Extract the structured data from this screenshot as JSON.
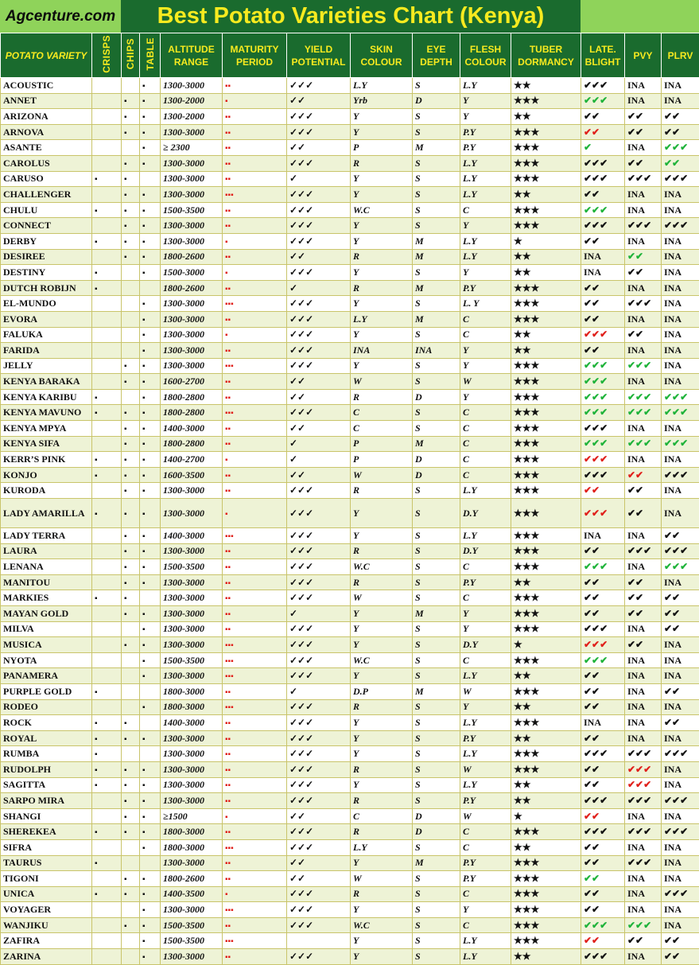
{
  "brand": "Agcenture.com",
  "title": "Best Potato Varieties Chart (Kenya)",
  "headers": [
    "POTATO VARIETY",
    "CRISPS",
    "CHIPS",
    "TABLE",
    "ALTITUDE RANGE",
    "MATURITY PERIOD",
    "YIELD POTENTIAL",
    "SKIN COLOUR",
    "EYE DEPTH",
    "FLESH COLOUR",
    "TUBER DORMANCY",
    "LATE. BLIGHT",
    "PVY",
    "PLRV"
  ],
  "colors": {
    "header_bg": "#1a6b2e",
    "header_text": "#f7ea1f",
    "accent_green": "#8fd35a",
    "check_green": "#1fb33a",
    "check_red": "#e0201b"
  },
  "rows": [
    {
      "name": "ACOUSTIC",
      "cr": 0,
      "ch": 0,
      "tb": 1,
      "alt": "1300-3000",
      "mat": 2,
      "yld": 3,
      "skin": "L.Y",
      "eye": "S",
      "flesh": "L.Y",
      "dorm": 2,
      "lb": "3k",
      "pvy": "INA",
      "plrv": "INA"
    },
    {
      "name": "ANNET",
      "cr": 0,
      "ch": 1,
      "tb": 1,
      "alt": "1300-2000",
      "mat": 1,
      "yld": 2,
      "skin": "Yrb",
      "eye": "D",
      "flesh": "Y",
      "dorm": 3,
      "lb": "3g",
      "pvy": "INA",
      "plrv": "INA"
    },
    {
      "name": "ARIZONA",
      "cr": 0,
      "ch": 1,
      "tb": 1,
      "alt": "1300-2000",
      "mat": 2,
      "yld": 3,
      "skin": "Y",
      "eye": "S",
      "flesh": "Y",
      "dorm": 2,
      "lb": "2k",
      "pvy": "2k",
      "plrv": "2k"
    },
    {
      "name": "ARNOVA",
      "cr": 0,
      "ch": 1,
      "tb": 1,
      "alt": "1300-3000",
      "mat": 2,
      "yld": 3,
      "skin": "Y",
      "eye": "S",
      "flesh": "P.Y",
      "dorm": 3,
      "lb": "2r",
      "pvy": "2k",
      "plrv": "2k"
    },
    {
      "name": "ASANTE",
      "cr": 0,
      "ch": 0,
      "tb": 1,
      "alt": "≥ 2300",
      "mat": 2,
      "yld": 2,
      "skin": "P",
      "eye": "M",
      "flesh": "P.Y",
      "dorm": 3,
      "lb": "1g",
      "pvy": "INA",
      "plrv": "3g"
    },
    {
      "name": "CAROLUS",
      "cr": 0,
      "ch": 1,
      "tb": 1,
      "alt": "1300-3000",
      "mat": 2,
      "yld": 3,
      "skin": "R",
      "eye": "S",
      "flesh": "L.Y",
      "dorm": 3,
      "lb": "3k",
      "pvy": "2k",
      "plrv": "2g"
    },
    {
      "name": "CARUSO",
      "cr": 1,
      "ch": 1,
      "tb": 0,
      "alt": "1300-3000",
      "mat": 2,
      "yld": 1,
      "skin": "Y",
      "eye": "S",
      "flesh": "L.Y",
      "dorm": 3,
      "lb": "3k",
      "pvy": "3k",
      "plrv": "3k"
    },
    {
      "name": "CHALLENGER",
      "cr": 0,
      "ch": 1,
      "tb": 1,
      "alt": "1300-3000",
      "mat": 3,
      "yld": 3,
      "skin": "Y",
      "eye": "S",
      "flesh": "L.Y",
      "dorm": 2,
      "lb": "2k",
      "pvy": "INA",
      "plrv": "INA"
    },
    {
      "name": "CHULU",
      "cr": 1,
      "ch": 1,
      "tb": 1,
      "alt": "1500-3500",
      "mat": 2,
      "yld": 3,
      "skin": "W.C",
      "eye": "S",
      "flesh": "C",
      "dorm": 3,
      "lb": "3g",
      "pvy": "INA",
      "plrv": "INA"
    },
    {
      "name": "CONNECT",
      "cr": 0,
      "ch": 1,
      "tb": 1,
      "alt": "1300-3000",
      "mat": 2,
      "yld": 3,
      "skin": "Y",
      "eye": "S",
      "flesh": "Y",
      "dorm": 3,
      "lb": "3k",
      "pvy": "3k",
      "plrv": "3k"
    },
    {
      "name": "DERBY",
      "cr": 1,
      "ch": 1,
      "tb": 1,
      "alt": "1300-3000",
      "mat": 1,
      "yld": 3,
      "skin": "Y",
      "eye": "M",
      "flesh": "L.Y",
      "dorm": 1,
      "lb": "2k",
      "pvy": "INA",
      "plrv": "INA"
    },
    {
      "name": "DESIREE",
      "cr": 0,
      "ch": 1,
      "tb": 1,
      "alt": "1800-2600",
      "mat": 2,
      "yld": 2,
      "skin": "R",
      "eye": "M",
      "flesh": "L.Y",
      "dorm": 2,
      "lb": "INA",
      "pvy": "2g",
      "plrv": "INA"
    },
    {
      "name": "DESTINY",
      "cr": 1,
      "ch": 0,
      "tb": 1,
      "alt": "1500-3000",
      "mat": 1,
      "yld": 3,
      "skin": "Y",
      "eye": "S",
      "flesh": "Y",
      "dorm": 2,
      "lb": "INA",
      "pvy": "2k",
      "plrv": "INA"
    },
    {
      "name": "DUTCH ROBIJN",
      "cr": 1,
      "ch": 0,
      "tb": 0,
      "alt": "1800-2600",
      "mat": 2,
      "yld": 1,
      "skin": "R",
      "eye": "M",
      "flesh": "P.Y",
      "dorm": 3,
      "lb": "2k",
      "pvy": "INA",
      "plrv": "INA"
    },
    {
      "name": "EL-MUNDO",
      "cr": 0,
      "ch": 0,
      "tb": 1,
      "alt": "1300-3000",
      "mat": 3,
      "yld": 3,
      "skin": "Y",
      "eye": "S",
      "flesh": "L. Y",
      "dorm": 3,
      "lb": "2k",
      "pvy": "3k",
      "plrv": "INA"
    },
    {
      "name": "EVORA",
      "cr": 0,
      "ch": 0,
      "tb": 1,
      "alt": "1300-3000",
      "mat": 2,
      "yld": 3,
      "skin": "L.Y",
      "eye": "M",
      "flesh": "C",
      "dorm": 3,
      "lb": "2k",
      "pvy": "INA",
      "plrv": "INA"
    },
    {
      "name": "FALUKA",
      "cr": 0,
      "ch": 0,
      "tb": 1,
      "alt": "1300-3000",
      "mat": 1,
      "yld": 3,
      "skin": "Y",
      "eye": "S",
      "flesh": "C",
      "dorm": 2,
      "lb": "3r",
      "pvy": "2k",
      "plrv": "INA"
    },
    {
      "name": "FARIDA",
      "cr": 0,
      "ch": 0,
      "tb": 1,
      "alt": "1300-3000",
      "mat": 2,
      "yld": 3,
      "skin": "INA",
      "eye": "INA",
      "flesh": "Y",
      "dorm": 2,
      "lb": "2k",
      "pvy": "INA",
      "plrv": "INA"
    },
    {
      "name": "JELLY",
      "cr": 0,
      "ch": 1,
      "tb": 1,
      "alt": "1300-3000",
      "mat": 3,
      "yld": 3,
      "skin": "Y",
      "eye": "S",
      "flesh": "Y",
      "dorm": 3,
      "lb": "3g",
      "pvy": "3g",
      "plrv": "INA"
    },
    {
      "name": "KENYA BARAKA",
      "cr": 0,
      "ch": 1,
      "tb": 1,
      "alt": "1600-2700",
      "mat": 2,
      "yld": 2,
      "skin": "W",
      "eye": "S",
      "flesh": "W",
      "dorm": 3,
      "lb": "3g",
      "pvy": "INA",
      "plrv": "INA"
    },
    {
      "name": "KENYA KARIBU",
      "cr": 1,
      "ch": 0,
      "tb": 1,
      "alt": "1800-2800",
      "mat": 2,
      "yld": 2,
      "skin": "R",
      "eye": "D",
      "flesh": "Y",
      "dorm": 3,
      "lb": "3g",
      "pvy": "3g",
      "plrv": "3g"
    },
    {
      "name": "KENYA MAVUNO",
      "cr": 1,
      "ch": 1,
      "tb": 1,
      "alt": "1800-2800",
      "mat": 3,
      "yld": 3,
      "skin": "C",
      "eye": "S",
      "flesh": "C",
      "dorm": 3,
      "lb": "3g",
      "pvy": "3g",
      "plrv": "3g"
    },
    {
      "name": "KENYA MPYA",
      "cr": 0,
      "ch": 1,
      "tb": 1,
      "alt": "1400-3000",
      "mat": 2,
      "yld": 2,
      "skin": "C",
      "eye": "S",
      "flesh": "C",
      "dorm": 3,
      "lb": "3k",
      "pvy": "INA",
      "plrv": "INA"
    },
    {
      "name": "KENYA SIFA",
      "cr": 0,
      "ch": 1,
      "tb": 1,
      "alt": "1800-2800",
      "mat": 2,
      "yld": 1,
      "skin": "P",
      "eye": "M",
      "flesh": "C",
      "dorm": 3,
      "lb": "3g",
      "pvy": "3g",
      "plrv": "3g"
    },
    {
      "name": "KERR’S PINK",
      "cr": 1,
      "ch": 1,
      "tb": 1,
      "alt": "1400-2700",
      "mat": 1,
      "yld": 1,
      "skin": "P",
      "eye": "D",
      "flesh": "C",
      "dorm": 3,
      "lb": "3r",
      "pvy": "INA",
      "plrv": "INA"
    },
    {
      "name": "KONJO",
      "cr": 1,
      "ch": 1,
      "tb": 1,
      "alt": "1600-3500",
      "mat": 2,
      "yld": 2,
      "skin": "W",
      "eye": "D",
      "flesh": "C",
      "dorm": 3,
      "lb": "3k",
      "pvy": "2r",
      "plrv": "3k"
    },
    {
      "name": "KURODA",
      "cr": 0,
      "ch": 1,
      "tb": 1,
      "alt": "1300-3000",
      "mat": 2,
      "yld": 3,
      "skin": "R",
      "eye": "S",
      "flesh": "L.Y",
      "dorm": 3,
      "lb": "2r",
      "pvy": "2k",
      "plrv": "INA"
    },
    {
      "name": "LADY AMARILLA",
      "cr": 1,
      "ch": 1,
      "tb": 1,
      "alt": "1300-3000",
      "mat": 1,
      "yld": 3,
      "skin": "Y",
      "eye": "S",
      "flesh": "D.Y",
      "dorm": 3,
      "lb": "3r",
      "pvy": "2k",
      "plrv": "INA",
      "tall": 1
    },
    {
      "name": "LADY TERRA",
      "cr": 0,
      "ch": 1,
      "tb": 1,
      "alt": "1400-3000",
      "mat": 3,
      "yld": 3,
      "skin": "Y",
      "eye": "S",
      "flesh": "L.Y",
      "dorm": 3,
      "lb": "INA",
      "pvy": "INA",
      "plrv": "2k"
    },
    {
      "name": "LAURA",
      "cr": 0,
      "ch": 1,
      "tb": 1,
      "alt": "1300-3000",
      "mat": 2,
      "yld": 3,
      "skin": "R",
      "eye": "S",
      "flesh": "D.Y",
      "dorm": 3,
      "lb": "2k",
      "pvy": "3k",
      "plrv": "3k"
    },
    {
      "name": "LENANA",
      "cr": 0,
      "ch": 1,
      "tb": 1,
      "alt": "1500-3500",
      "mat": 2,
      "yld": 3,
      "skin": "W.C",
      "eye": "S",
      "flesh": "C",
      "dorm": 3,
      "lb": "3g",
      "pvy": "INA",
      "plrv": "3g"
    },
    {
      "name": "MANITOU",
      "cr": 0,
      "ch": 1,
      "tb": 1,
      "alt": "1300-3000",
      "mat": 2,
      "yld": 3,
      "skin": "R",
      "eye": "S",
      "flesh": "P.Y",
      "dorm": 2,
      "lb": "2k",
      "pvy": "2k",
      "plrv": "INA"
    },
    {
      "name": "MARKIES",
      "cr": 1,
      "ch": 1,
      "tb": 0,
      "alt": "1300-3000",
      "mat": 2,
      "yld": 3,
      "skin": "W",
      "eye": "S",
      "flesh": "C",
      "dorm": 3,
      "lb": "2k",
      "pvy": "2k",
      "plrv": "2k"
    },
    {
      "name": "MAYAN GOLD",
      "cr": 0,
      "ch": 1,
      "tb": 1,
      "alt": "1300-3000",
      "mat": 2,
      "yld": 1,
      "skin": "Y",
      "eye": "M",
      "flesh": "Y",
      "dorm": 3,
      "lb": "2k",
      "pvy": "2k",
      "plrv": "2k"
    },
    {
      "name": "MILVA",
      "cr": 0,
      "ch": 0,
      "tb": 1,
      "alt": "1300-3000",
      "mat": 2,
      "yld": 3,
      "skin": "Y",
      "eye": "S",
      "flesh": "Y",
      "dorm": 3,
      "lb": "3k",
      "pvy": "INA",
      "plrv": "2k"
    },
    {
      "name": "MUSICA",
      "cr": 0,
      "ch": 1,
      "tb": 1,
      "alt": "1300-3000",
      "mat": 3,
      "yld": 3,
      "skin": "Y",
      "eye": "S",
      "flesh": "D.Y",
      "dorm": 1,
      "lb": "3r",
      "pvy": "2k",
      "plrv": "INA"
    },
    {
      "name": "NYOTA",
      "cr": 0,
      "ch": 0,
      "tb": 1,
      "alt": "1500-3500",
      "mat": 3,
      "yld": 3,
      "skin": "W.C",
      "eye": "S",
      "flesh": "C",
      "dorm": 3,
      "lb": "3g",
      "pvy": "INA",
      "plrv": "INA"
    },
    {
      "name": "PANAMERA",
      "cr": 0,
      "ch": 0,
      "tb": 1,
      "alt": "1300-3000",
      "mat": 3,
      "yld": 3,
      "skin": "Y",
      "eye": "S",
      "flesh": "L.Y",
      "dorm": 2,
      "lb": "2k",
      "pvy": "INA",
      "plrv": "INA"
    },
    {
      "name": "PURPLE GOLD",
      "cr": 1,
      "ch": 0,
      "tb": 0,
      "alt": "1800-3000",
      "mat": 2,
      "yld": 1,
      "skin": "D.P",
      "eye": "M",
      "flesh": "W",
      "dorm": 3,
      "lb": "2k",
      "pvy": "INA",
      "plrv": "2k"
    },
    {
      "name": "RODEO",
      "cr": 0,
      "ch": 0,
      "tb": 1,
      "alt": "1800-3000",
      "mat": 3,
      "yld": 3,
      "skin": "R",
      "eye": "S",
      "flesh": "Y",
      "dorm": 2,
      "lb": "2k",
      "pvy": "INA",
      "plrv": "INA"
    },
    {
      "name": "ROCK",
      "cr": 1,
      "ch": 1,
      "tb": 0,
      "alt": "1400-3000",
      "mat": 2,
      "yld": 3,
      "skin": "Y",
      "eye": "S",
      "flesh": "L.Y",
      "dorm": 3,
      "lb": "INA",
      "pvy": "INA",
      "plrv": "2k"
    },
    {
      "name": "ROYAL",
      "cr": 1,
      "ch": 1,
      "tb": 1,
      "alt": "1300-3000",
      "mat": 2,
      "yld": 3,
      "skin": "Y",
      "eye": "S",
      "flesh": "P.Y",
      "dorm": 2,
      "lb": "2k",
      "pvy": "INA",
      "plrv": "INA"
    },
    {
      "name": "RUMBA",
      "cr": 1,
      "ch": 0,
      "tb": 0,
      "alt": "1300-3000",
      "mat": 2,
      "yld": 3,
      "skin": "Y",
      "eye": "S",
      "flesh": "L.Y",
      "dorm": 3,
      "lb": "3k",
      "pvy": "3k",
      "plrv": "3k"
    },
    {
      "name": "RUDOLPH",
      "cr": 1,
      "ch": 1,
      "tb": 1,
      "alt": "1300-3000",
      "mat": 2,
      "yld": 3,
      "skin": "R",
      "eye": "S",
      "flesh": "W",
      "dorm": 3,
      "lb": "2k",
      "pvy": "3r",
      "plrv": "INA"
    },
    {
      "name": "SAGITTA",
      "cr": 1,
      "ch": 1,
      "tb": 1,
      "alt": "1300-3000",
      "mat": 2,
      "yld": 3,
      "skin": "Y",
      "eye": "S",
      "flesh": "L.Y",
      "dorm": 2,
      "lb": "2k",
      "pvy": "3r",
      "plrv": "INA"
    },
    {
      "name": "SARPO MIRA",
      "cr": 0,
      "ch": 1,
      "tb": 1,
      "alt": "1300-3000",
      "mat": 2,
      "yld": 3,
      "skin": "R",
      "eye": "S",
      "flesh": "P.Y",
      "dorm": 2,
      "lb": "3k",
      "pvy": "3k",
      "plrv": "3k"
    },
    {
      "name": "SHANGI",
      "cr": 0,
      "ch": 1,
      "tb": 1,
      "alt": "≥1500",
      "mat": 1,
      "yld": 2,
      "skin": "C",
      "eye": "D",
      "flesh": "W",
      "dorm": 1,
      "lb": "2r",
      "pvy": "INA",
      "plrv": "INA"
    },
    {
      "name": "SHEREKEA",
      "cr": 1,
      "ch": 1,
      "tb": 1,
      "alt": "1800-3000",
      "mat": 2,
      "yld": 3,
      "skin": "R",
      "eye": "D",
      "flesh": "C",
      "dorm": 3,
      "lb": "3k",
      "pvy": "3k",
      "plrv": "3k"
    },
    {
      "name": "SIFRA",
      "cr": 0,
      "ch": 0,
      "tb": 1,
      "alt": "1800-3000",
      "mat": 3,
      "yld": 3,
      "skin": "L.Y",
      "eye": "S",
      "flesh": "C",
      "dorm": 2,
      "lb": "2k",
      "pvy": "INA",
      "plrv": "INA"
    },
    {
      "name": "TAURUS",
      "cr": 1,
      "ch": 0,
      "tb": 0,
      "alt": "1300-3000",
      "mat": 2,
      "yld": 2,
      "skin": "Y",
      "eye": "M",
      "flesh": "P.Y",
      "dorm": 3,
      "lb": "2k",
      "pvy": "3k",
      "plrv": "INA"
    },
    {
      "name": "TIGONI",
      "cr": 0,
      "ch": 1,
      "tb": 1,
      "alt": "1800-2600",
      "mat": 2,
      "yld": 2,
      "skin": "W",
      "eye": "S",
      "flesh": "P.Y",
      "dorm": 3,
      "lb": "2g",
      "pvy": "INA",
      "plrv": "INA"
    },
    {
      "name": "UNICA",
      "cr": 1,
      "ch": 1,
      "tb": 1,
      "alt": "1400-3500",
      "mat": 1,
      "yld": 3,
      "skin": "R",
      "eye": "S",
      "flesh": "C",
      "dorm": 3,
      "lb": "2k",
      "pvy": "INA",
      "plrv": "3k"
    },
    {
      "name": "VOYAGER",
      "cr": 0,
      "ch": 0,
      "tb": 1,
      "alt": "1300-3000",
      "mat": 3,
      "yld": 3,
      "skin": "Y",
      "eye": "S",
      "flesh": "Y",
      "dorm": 3,
      "lb": "2k",
      "pvy": "INA",
      "plrv": "INA"
    },
    {
      "name": "WANJIKU",
      "cr": 0,
      "ch": 1,
      "tb": 1,
      "alt": "1500-3500",
      "mat": 2,
      "yld": 3,
      "skin": "W.C",
      "eye": "S",
      "flesh": "C",
      "dorm": 3,
      "lb": "3g",
      "pvy": "3g",
      "plrv": "INA"
    },
    {
      "name": "ZAFIRA",
      "cr": 0,
      "ch": 0,
      "tb": 1,
      "alt": "1500-3500",
      "mat": 3,
      "yld": 0,
      "skin": "Y",
      "eye": "S",
      "flesh": "L.Y",
      "dorm": 3,
      "lb": "2r",
      "pvy": "2k",
      "plrv": "2k"
    },
    {
      "name": "ZARINA",
      "cr": 0,
      "ch": 0,
      "tb": 1,
      "alt": "1300-3000",
      "mat": 2,
      "yld": 3,
      "skin": "Y",
      "eye": "S",
      "flesh": "L.Y",
      "dorm": 2,
      "lb": "3k",
      "pvy": "INA",
      "plrv": "2k"
    }
  ]
}
